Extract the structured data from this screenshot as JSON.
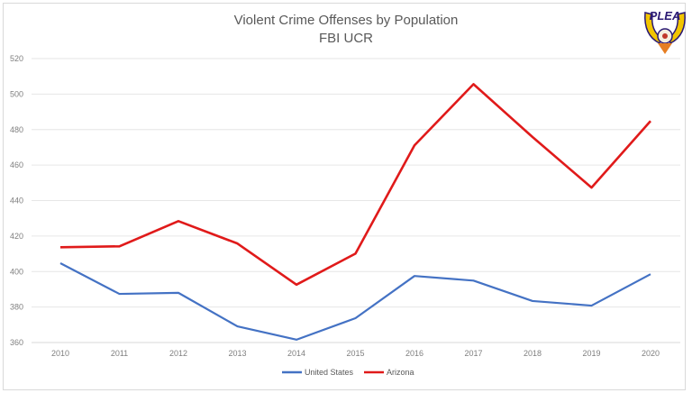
{
  "chart_data": {
    "type": "line",
    "title": "Violent Crime Offenses by Population",
    "subtitle": "FBI UCR",
    "xlabel": "",
    "ylabel": "",
    "categories": [
      "2010",
      "2011",
      "2012",
      "2013",
      "2014",
      "2015",
      "2016",
      "2017",
      "2018",
      "2019",
      "2020"
    ],
    "ylim": [
      360,
      520
    ],
    "yticks": [
      360,
      380,
      400,
      420,
      440,
      460,
      480,
      500,
      520
    ],
    "grid": true,
    "legend_position": "bottom",
    "series": [
      {
        "name": "United States",
        "color": "#4472c4",
        "values": [
          404.7,
          387.4,
          388.0,
          369.1,
          361.6,
          373.7,
          397.5,
          394.9,
          383.4,
          380.8,
          398.5
        ]
      },
      {
        "name": "Arizona",
        "color": "#e01a1a",
        "values": [
          413.7,
          414.2,
          428.4,
          415.8,
          392.6,
          410.1,
          471.1,
          505.6,
          475.8,
          447.3,
          484.8
        ]
      }
    ]
  },
  "logo": {
    "text": "PLEA"
  }
}
